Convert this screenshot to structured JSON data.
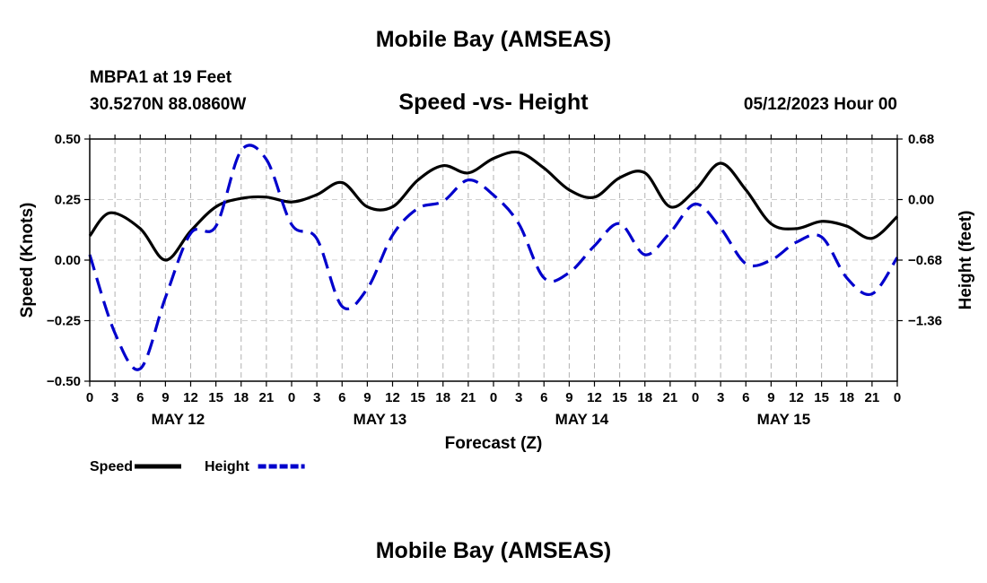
{
  "header": {
    "title": "Mobile Bay (AMSEAS)",
    "station": "MBPA1 at 19 Feet",
    "coords": "30.5270N  88.0860W",
    "subtitle": "Speed -vs- Height",
    "datetime": "05/12/2023 Hour 00",
    "footer_title": "Mobile Bay (AMSEAS)"
  },
  "chart_data": {
    "type": "line",
    "xlabel": "Forecast (Z)",
    "ylabel_left": "Speed (Knots)",
    "ylabel_right": "Height (feet)",
    "ylim_left": [
      -0.5,
      0.5
    ],
    "yticks_left": [
      "0.50",
      "0.25",
      "0.00",
      "−0.25",
      "−0.50"
    ],
    "ylim_right": [
      -2.04,
      0.68
    ],
    "yticks_right": [
      "0.68",
      "0.00",
      "−0.68",
      "−1.36"
    ],
    "xlim": [
      0,
      96
    ],
    "x_tick_labels": [
      "0",
      "3",
      "6",
      "9",
      "12",
      "15",
      "18",
      "21",
      "0",
      "3",
      "6",
      "9",
      "12",
      "15",
      "18",
      "21",
      "0",
      "3",
      "6",
      "9",
      "12",
      "15",
      "18",
      "21",
      "0",
      "3",
      "6",
      "9",
      "12",
      "15",
      "18",
      "21",
      "0"
    ],
    "day_labels": [
      "MAY 12",
      "MAY 13",
      "MAY 14",
      "MAY 15"
    ],
    "grid": true,
    "series": [
      {
        "name": "Speed",
        "color": "#000000",
        "dash": "solid",
        "axis": "left",
        "x": [
          0,
          2.4,
          6,
          9,
          12,
          15,
          18,
          21,
          24,
          27,
          30,
          33,
          36,
          39,
          42,
          45,
          48,
          51,
          54,
          57,
          60,
          63,
          66,
          69,
          72,
          75,
          78,
          81,
          84,
          87,
          90,
          93,
          96
        ],
        "values": [
          0.1,
          0.195,
          0.13,
          0.0,
          0.12,
          0.22,
          0.255,
          0.26,
          0.24,
          0.27,
          0.32,
          0.22,
          0.22,
          0.33,
          0.39,
          0.36,
          0.42,
          0.445,
          0.38,
          0.29,
          0.26,
          0.34,
          0.36,
          0.22,
          0.29,
          0.4,
          0.29,
          0.15,
          0.13,
          0.16,
          0.14,
          0.09,
          0.18
        ]
      },
      {
        "name": "Height",
        "color": "#0000cc",
        "dash": "dashed",
        "axis": "right",
        "x": [
          0,
          3,
          6,
          9,
          12,
          15,
          18,
          21,
          24,
          27,
          30,
          33,
          36,
          39,
          42,
          45,
          48,
          51,
          54,
          57,
          60,
          63,
          66,
          69,
          72,
          75,
          78,
          81,
          84,
          87,
          90,
          93,
          96
        ],
        "values": [
          -0.62,
          -1.5,
          -1.9,
          -1.1,
          -0.38,
          -0.3,
          0.55,
          0.45,
          -0.28,
          -0.44,
          -1.2,
          -1.0,
          -0.4,
          -0.1,
          -0.02,
          0.22,
          0.05,
          -0.27,
          -0.88,
          -0.82,
          -0.52,
          -0.27,
          -0.62,
          -0.37,
          -0.05,
          -0.32,
          -0.72,
          -0.68,
          -0.48,
          -0.42,
          -0.88,
          -1.06,
          -0.65
        ]
      }
    ]
  }
}
